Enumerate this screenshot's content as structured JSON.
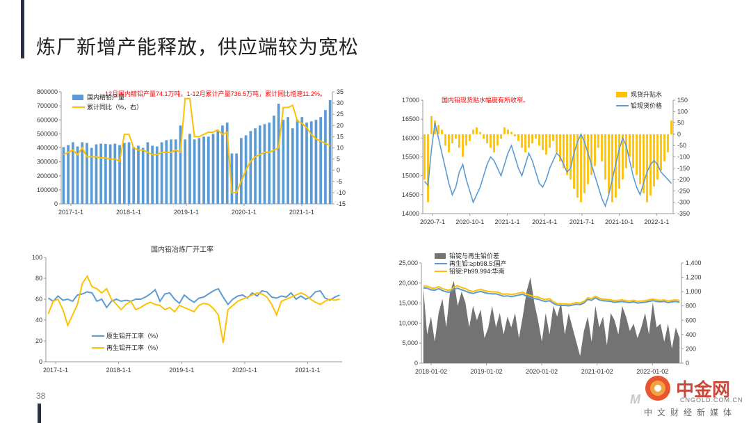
{
  "page": {
    "title": "炼厂新增产能释放，供应端较为宽松",
    "number": "38"
  },
  "watermark": {
    "name": "中金网",
    "domain": "CNGOLD.COM.CN",
    "tagline": "中文财经新媒体"
  },
  "chart_data": [
    {
      "type": "bar",
      "annotation": "12月国内精铅产量74.1万吨，1-12月累计产量736.5万吨，累计同比增速11.2%。",
      "legend": [
        "国内精铅产量",
        "累计同比（%，右）"
      ],
      "x_ticks": [
        "2017-1-1",
        "2018-1-1",
        "2019-1-1",
        "2020-1-1",
        "2021-1-1"
      ],
      "ylim": [
        0,
        800000
      ],
      "y_ticks": [
        "0",
        "100000",
        "200000",
        "300000",
        "400000",
        "500000",
        "600000",
        "700000",
        "800000"
      ],
      "y2lim": [
        -15,
        35
      ],
      "y2_ticks": [
        "-15",
        "-10",
        "-5",
        "0",
        "5",
        "10",
        "15",
        "20",
        "25",
        "30",
        "35"
      ],
      "series": [
        {
          "name": "国内精铅产量",
          "kind": "bar",
          "color": "#5b9bd5",
          "values": [
            405000,
            420000,
            440000,
            410000,
            440000,
            435000,
            400000,
            425000,
            430000,
            428000,
            425000,
            430000,
            420000,
            435000,
            440000,
            405000,
            415000,
            400000,
            440000,
            415000,
            410000,
            440000,
            455000,
            460000,
            460000,
            560000,
            460000,
            500000,
            460000,
            470000,
            480000,
            480000,
            500000,
            520000,
            560000,
            580000,
            360000,
            360000,
            470000,
            490000,
            520000,
            540000,
            560000,
            570000,
            580000,
            630000,
            715000,
            600000,
            620000,
            540000,
            600000,
            620000,
            580000,
            590000,
            600000,
            620000,
            670000,
            741000
          ]
        },
        {
          "name": "累计同比（%，右）",
          "kind": "line",
          "axis": "right",
          "color": "#ffc000",
          "values": [
            7,
            8,
            9,
            7,
            10,
            6,
            6,
            6,
            5.5,
            5.5,
            5,
            5,
            4,
            16,
            16,
            10,
            9,
            9,
            8,
            7,
            7,
            8,
            8,
            8,
            9,
            8,
            32,
            32,
            15,
            15,
            16,
            17,
            17,
            18,
            16,
            17,
            -10,
            -10,
            -5,
            0,
            4,
            6,
            7,
            8,
            8,
            9,
            10,
            28,
            28,
            29,
            22,
            21,
            19,
            16,
            14,
            13,
            12,
            11
          ]
        }
      ]
    },
    {
      "type": "bar",
      "annotation": "国内铅现货贴水幅度有所收窄。",
      "legend": [
        "现货升贴水",
        "铅现货价格"
      ],
      "x_ticks": [
        "2020-7-1",
        "2020-10-1",
        "2021-1-1",
        "2021-4-1",
        "2021-7-1",
        "2021-10-1",
        "2022-1-1"
      ],
      "ylim": [
        14000,
        17000
      ],
      "y_ticks": [
        "14000",
        "14500",
        "15000",
        "15500",
        "16000",
        "16500",
        "17000"
      ],
      "y2lim": [
        -350,
        150
      ],
      "y2_ticks": [
        "-350",
        "-300",
        "-250",
        "-200",
        "-150",
        "-100",
        "-50",
        "0",
        "50",
        "100",
        "150"
      ],
      "series": [
        {
          "name": "现货升贴水",
          "kind": "bar",
          "axis": "right",
          "color": "#ffc000",
          "values": [
            -200,
            -300,
            80,
            60,
            40,
            20,
            -50,
            -80,
            -40,
            -20,
            -60,
            -100,
            -50,
            -30,
            20,
            30,
            10,
            -20,
            -40,
            -60,
            -80,
            -50,
            -20,
            30,
            20,
            10,
            -10,
            -30,
            -60,
            -80,
            -60,
            -40,
            -20,
            -50,
            -70,
            -90,
            -60,
            -30,
            -80,
            -120,
            -150,
            -180,
            -200,
            -240,
            -280,
            -300,
            -260,
            -220,
            -180,
            -140,
            -60,
            -120,
            -200,
            -260,
            -300,
            -280,
            -240,
            -200,
            -150,
            -100,
            -150,
            -180,
            -220,
            -260,
            -300,
            -270,
            -230,
            -200,
            -160,
            -120,
            -80,
            60
          ]
        },
        {
          "name": "铅现货价格",
          "kind": "line",
          "color": "#5b9bd5",
          "values": [
            14850,
            14750,
            15700,
            16400,
            16000,
            15600,
            15200,
            14800,
            14500,
            14700,
            15100,
            15300,
            14900,
            14600,
            14300,
            14500,
            14700,
            15000,
            15300,
            15500,
            15400,
            15200,
            15000,
            15300,
            15600,
            15800,
            15500,
            15200,
            15000,
            15300,
            15600,
            15400,
            15100,
            14800,
            14700,
            14900,
            15200,
            15400,
            15600,
            15500,
            15300,
            15100,
            15200,
            15600,
            15900,
            16100,
            15900,
            15600,
            15300,
            15000,
            14700,
            14400,
            14200,
            14500,
            14900,
            15300,
            15700,
            16000,
            15800,
            15400,
            15000,
            14700,
            14500,
            14800,
            15100,
            15300,
            15400,
            15300,
            15100,
            15000,
            14900,
            14800
          ]
        }
      ]
    },
    {
      "type": "line",
      "title": "国内铅冶炼厂开工率",
      "legend": [
        "原生铅开工率（%）",
        "再生铅开工率（%）"
      ],
      "x_ticks": [
        "2017-1-1",
        "2018-1-1",
        "2019-1-1",
        "2020-1-1",
        "2021-1-1"
      ],
      "ylim": [
        0,
        100
      ],
      "y_ticks": [
        "0",
        "20",
        "40",
        "60",
        "80",
        "100"
      ],
      "series": [
        {
          "name": "原生铅开工率（%）",
          "color": "#5b9bd5",
          "values": [
            61,
            58,
            63,
            59,
            60,
            58,
            64,
            65,
            67,
            66,
            58,
            60,
            52,
            58,
            60,
            58,
            59,
            58,
            60,
            60,
            62,
            65,
            69,
            58,
            65,
            66,
            60,
            56,
            64,
            60,
            57,
            61,
            62,
            65,
            68,
            70,
            62,
            55,
            60,
            63,
            64,
            61,
            66,
            63,
            68,
            67,
            62,
            61,
            63,
            62,
            66,
            60,
            63,
            60,
            62,
            67,
            68,
            61,
            59,
            62,
            64
          ]
        },
        {
          "name": "再生铅开工率（%）",
          "color": "#ffc000",
          "values": [
            46,
            58,
            60,
            50,
            35,
            45,
            55,
            75,
            82,
            72,
            70,
            66,
            70,
            60,
            55,
            50,
            55,
            58,
            50,
            52,
            55,
            57,
            55,
            54,
            50,
            52,
            48,
            54,
            52,
            50,
            48,
            54,
            56,
            55,
            51,
            45,
            18,
            50,
            54,
            58,
            60,
            62,
            64,
            66,
            65,
            62,
            55,
            45,
            58,
            60,
            62,
            64,
            66,
            64,
            60,
            57,
            55,
            58,
            60,
            59,
            60
          ]
        }
      ]
    },
    {
      "type": "area",
      "legend": [
        "铅锭与再生铅价差",
        "再生铅:≥pb98.5:国产",
        "铅锭:Pb99.994:华南"
      ],
      "x_ticks": [
        "2018-01-02",
        "2019-01-02",
        "2020-01-02",
        "2021-01-02",
        "2022-01-02"
      ],
      "ylim": [
        0,
        25000
      ],
      "y_ticks": [
        "0",
        "5,000",
        "10,000",
        "15,000",
        "20,000",
        "25,000"
      ],
      "y2lim": [
        0,
        1400
      ],
      "y2_ticks": [
        "0",
        "200",
        "400",
        "600",
        "800",
        "1,000",
        "1,200",
        "1,400"
      ],
      "series": [
        {
          "name": "铅锭与再生铅价差",
          "kind": "area",
          "axis": "right",
          "color": "#737373",
          "values": [
            1050,
            400,
            650,
            300,
            700,
            900,
            500,
            1000,
            1150,
            800,
            1000,
            850,
            500,
            800,
            600,
            750,
            350,
            500,
            800,
            500,
            700,
            400,
            650,
            500,
            700,
            350,
            650,
            1000,
            1200,
            850,
            600,
            300,
            700,
            400,
            800,
            650,
            850,
            400,
            700,
            500,
            300,
            100,
            450,
            650,
            300,
            800,
            500,
            650,
            250,
            700,
            600,
            400,
            800,
            650,
            450,
            550,
            350,
            500,
            700,
            400,
            850,
            500,
            550,
            300,
            550,
            200,
            500,
            350
          ]
        },
        {
          "name": "再生铅:≥pb98.5:国产",
          "kind": "line",
          "color": "#5b9bd5",
          "values": [
            18800,
            18700,
            18300,
            18200,
            18600,
            18100,
            17800,
            17700,
            18500,
            18700,
            18300,
            18000,
            17600,
            17400,
            17700,
            17900,
            17600,
            17400,
            17300,
            17300,
            17000,
            16700,
            16800,
            16600,
            16800,
            17000,
            17200,
            16700,
            16400,
            16100,
            16000,
            15600,
            15400,
            15600,
            14900,
            14500,
            14400,
            14400,
            14300,
            14500,
            14700,
            14600,
            15000,
            15900,
            15700,
            16300,
            15800,
            15600,
            15500,
            15400,
            15200,
            15300,
            15400,
            15200,
            15100,
            15300,
            15000,
            15100,
            15200,
            15400,
            15600,
            15400,
            15300,
            15400,
            15100,
            15300,
            15400,
            15200
          ]
        },
        {
          "name": "铅锭:Pb99.994:华南",
          "kind": "line",
          "color": "#ffc000",
          "values": [
            19200,
            19200,
            18800,
            18700,
            19100,
            18600,
            18300,
            18200,
            19000,
            19300,
            18900,
            18600,
            18100,
            17900,
            18200,
            18400,
            18100,
            17900,
            17800,
            17800,
            17500,
            17200,
            17300,
            17100,
            17300,
            17500,
            17700,
            17200,
            16900,
            16600,
            16500,
            16100,
            15900,
            16100,
            15300,
            14900,
            14800,
            14800,
            14700,
            14900,
            15100,
            15000,
            15400,
            16300,
            16100,
            16700,
            16200,
            16000,
            15900,
            15800,
            15600,
            15700,
            15800,
            15600,
            15500,
            15700,
            15400,
            15500,
            15600,
            15800,
            16000,
            15800,
            15700,
            15800,
            15500,
            15700,
            15800,
            15600
          ]
        }
      ]
    }
  ]
}
